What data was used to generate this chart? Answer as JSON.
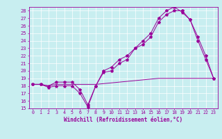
{
  "xlabel": "Windchill (Refroidissement éolien,°C)",
  "bg_color": "#c8eef0",
  "line_color": "#990099",
  "xlim": [
    -0.5,
    23.5
  ],
  "ylim": [
    15,
    28.5
  ],
  "xticks": [
    0,
    1,
    2,
    3,
    4,
    5,
    6,
    7,
    8,
    9,
    10,
    11,
    12,
    13,
    14,
    15,
    16,
    17,
    18,
    19,
    20,
    21,
    22,
    23
  ],
  "yticks": [
    15,
    16,
    17,
    18,
    19,
    20,
    21,
    22,
    23,
    24,
    25,
    26,
    27,
    28
  ],
  "line1_x": [
    0,
    1,
    2,
    3,
    4,
    5,
    6,
    7,
    8,
    9,
    10,
    11,
    12,
    13,
    14,
    15,
    16,
    17,
    18,
    19,
    20,
    21,
    22,
    23
  ],
  "line1_y": [
    18.2,
    18.2,
    17.8,
    18.0,
    18.0,
    18.0,
    17.0,
    15.2,
    18.0,
    19.8,
    20.0,
    21.0,
    21.5,
    23.0,
    23.5,
    24.5,
    26.5,
    27.5,
    28.0,
    28.0,
    26.8,
    24.0,
    21.5,
    19.0
  ],
  "line2_x": [
    0,
    1,
    2,
    3,
    4,
    5,
    6,
    7,
    8,
    9,
    10,
    11,
    12,
    13,
    14,
    15,
    16,
    17,
    18,
    19,
    20,
    21,
    22,
    23
  ],
  "line2_y": [
    18.2,
    18.2,
    18.0,
    18.5,
    18.5,
    18.5,
    17.5,
    15.5,
    18.0,
    20.0,
    20.5,
    21.5,
    22.0,
    23.0,
    24.0,
    25.0,
    27.0,
    28.0,
    28.5,
    27.8,
    26.8,
    24.5,
    22.0,
    19.0
  ],
  "line3_x": [
    0,
    1,
    2,
    3,
    4,
    5,
    6,
    7,
    8,
    9,
    10,
    11,
    12,
    13,
    14,
    15,
    16,
    17,
    18,
    19,
    20,
    21,
    22,
    23
  ],
  "line3_y": [
    18.2,
    18.2,
    18.0,
    18.2,
    18.2,
    18.2,
    18.2,
    18.2,
    18.2,
    18.3,
    18.4,
    18.5,
    18.6,
    18.7,
    18.8,
    18.9,
    19.0,
    19.0,
    19.0,
    19.0,
    19.0,
    19.0,
    19.0,
    19.0
  ],
  "xlabel_fontsize": 5.5,
  "tick_fontsize": 4.8,
  "grid_color": "#ffffff",
  "spine_color": "#990099"
}
